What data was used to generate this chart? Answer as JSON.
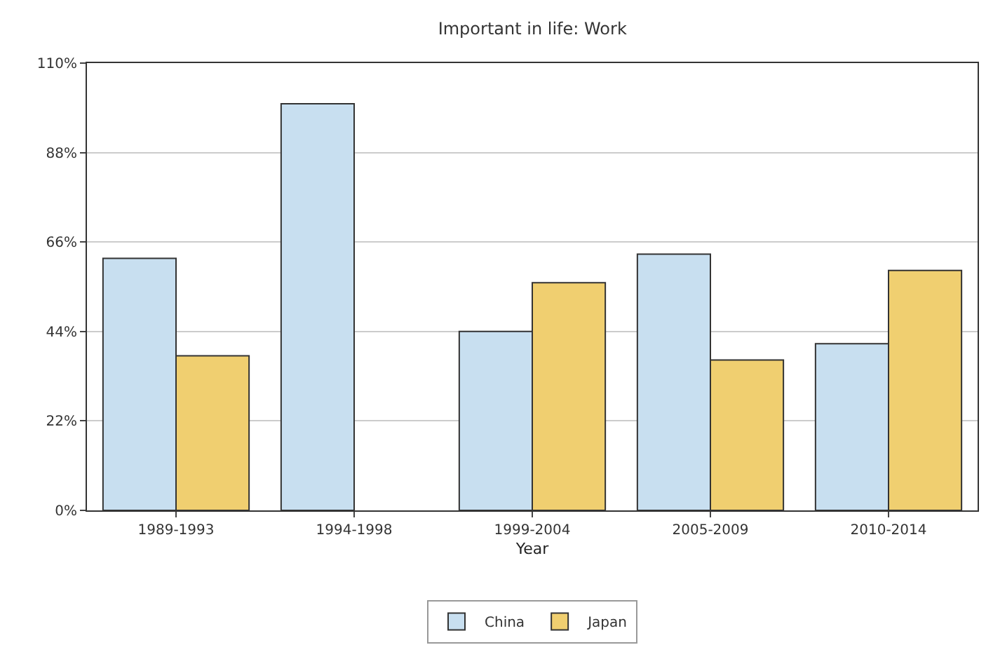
{
  "chart_data": {
    "type": "bar",
    "title": "Important in life: Work",
    "xlabel": "Year",
    "categories": [
      "1989-1993",
      "1994-1998",
      "1999-2004",
      "2005-2009",
      "2010-2014"
    ],
    "series": [
      {
        "name": "China",
        "color": "#c8dff0",
        "values": [
          62,
          100,
          44,
          63,
          41
        ]
      },
      {
        "name": "Japan",
        "color": "#f0cf70",
        "values": [
          38,
          null,
          56,
          37,
          59
        ]
      }
    ],
    "ylim": [
      0,
      110
    ],
    "yticks": [
      {
        "value": 0,
        "label": "0%"
      },
      {
        "value": 22,
        "label": "22%"
      },
      {
        "value": 44,
        "label": "44%"
      },
      {
        "value": 66,
        "label": "66%"
      },
      {
        "value": 88,
        "label": "88%"
      },
      {
        "value": 110,
        "label": "110%"
      }
    ],
    "grid": "y",
    "legend": "bottom"
  }
}
